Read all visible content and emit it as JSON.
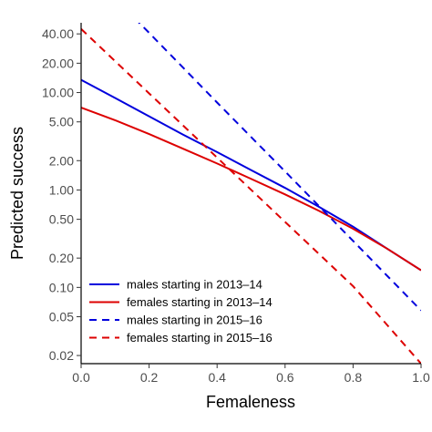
{
  "chart_data": {
    "type": "line",
    "xlabel": "Femaleness",
    "ylabel": "Predicted success",
    "xlim": [
      0,
      1
    ],
    "ylim": [
      0.0165,
      52
    ],
    "yscale": "log",
    "grid": false,
    "legend_position": "bottom-left",
    "x_ticks": [
      0,
      0.2,
      0.4,
      0.6,
      0.8,
      1
    ],
    "x_tick_labels": [
      "0.0",
      "0.2",
      "0.4",
      "0.6",
      "0.8",
      "1.0"
    ],
    "y_ticks": [
      0.02,
      0.05,
      0.1,
      0.2,
      0.5,
      1,
      2,
      5,
      10,
      20,
      40
    ],
    "y_tick_labels": [
      "0.02",
      "0.05",
      "0.10",
      "0.20",
      "0.50",
      "1.00",
      "2.00",
      "5.00",
      "10.00",
      "20.00",
      "40.00"
    ],
    "series": [
      {
        "name": "males starting in 2013–14",
        "color": "#0000dd",
        "dash": "solid",
        "x": [
          0,
          0.1,
          0.2,
          0.3,
          0.4,
          0.5,
          0.6,
          0.7,
          0.8,
          0.9,
          1.0
        ],
        "y": [
          13.5,
          8.8,
          5.7,
          3.7,
          2.45,
          1.6,
          1.05,
          0.67,
          0.42,
          0.25,
          0.15
        ]
      },
      {
        "name": "females starting in 2013–14",
        "color": "#dd0000",
        "dash": "solid",
        "x": [
          0,
          0.1,
          0.2,
          0.3,
          0.4,
          0.5,
          0.6,
          0.7,
          0.8,
          0.9,
          1.0
        ],
        "y": [
          7.0,
          5.2,
          3.75,
          2.65,
          1.87,
          1.3,
          0.9,
          0.61,
          0.4,
          0.25,
          0.15
        ]
      },
      {
        "name": "males starting in 2015–16",
        "color": "#0000dd",
        "dash": "dashed",
        "x": [
          0,
          0.2,
          0.4,
          0.6,
          0.8,
          1.0
        ],
        "y": [
          210,
          41,
          7.9,
          1.55,
          0.3,
          0.058
        ]
      },
      {
        "name": "females starting in 2015–16",
        "color": "#dd0000",
        "dash": "dashed",
        "x": [
          0,
          0.2,
          0.4,
          0.6,
          0.8,
          1.0
        ],
        "y": [
          45,
          9.8,
          2.15,
          0.47,
          0.103,
          0.0165
        ]
      }
    ]
  }
}
